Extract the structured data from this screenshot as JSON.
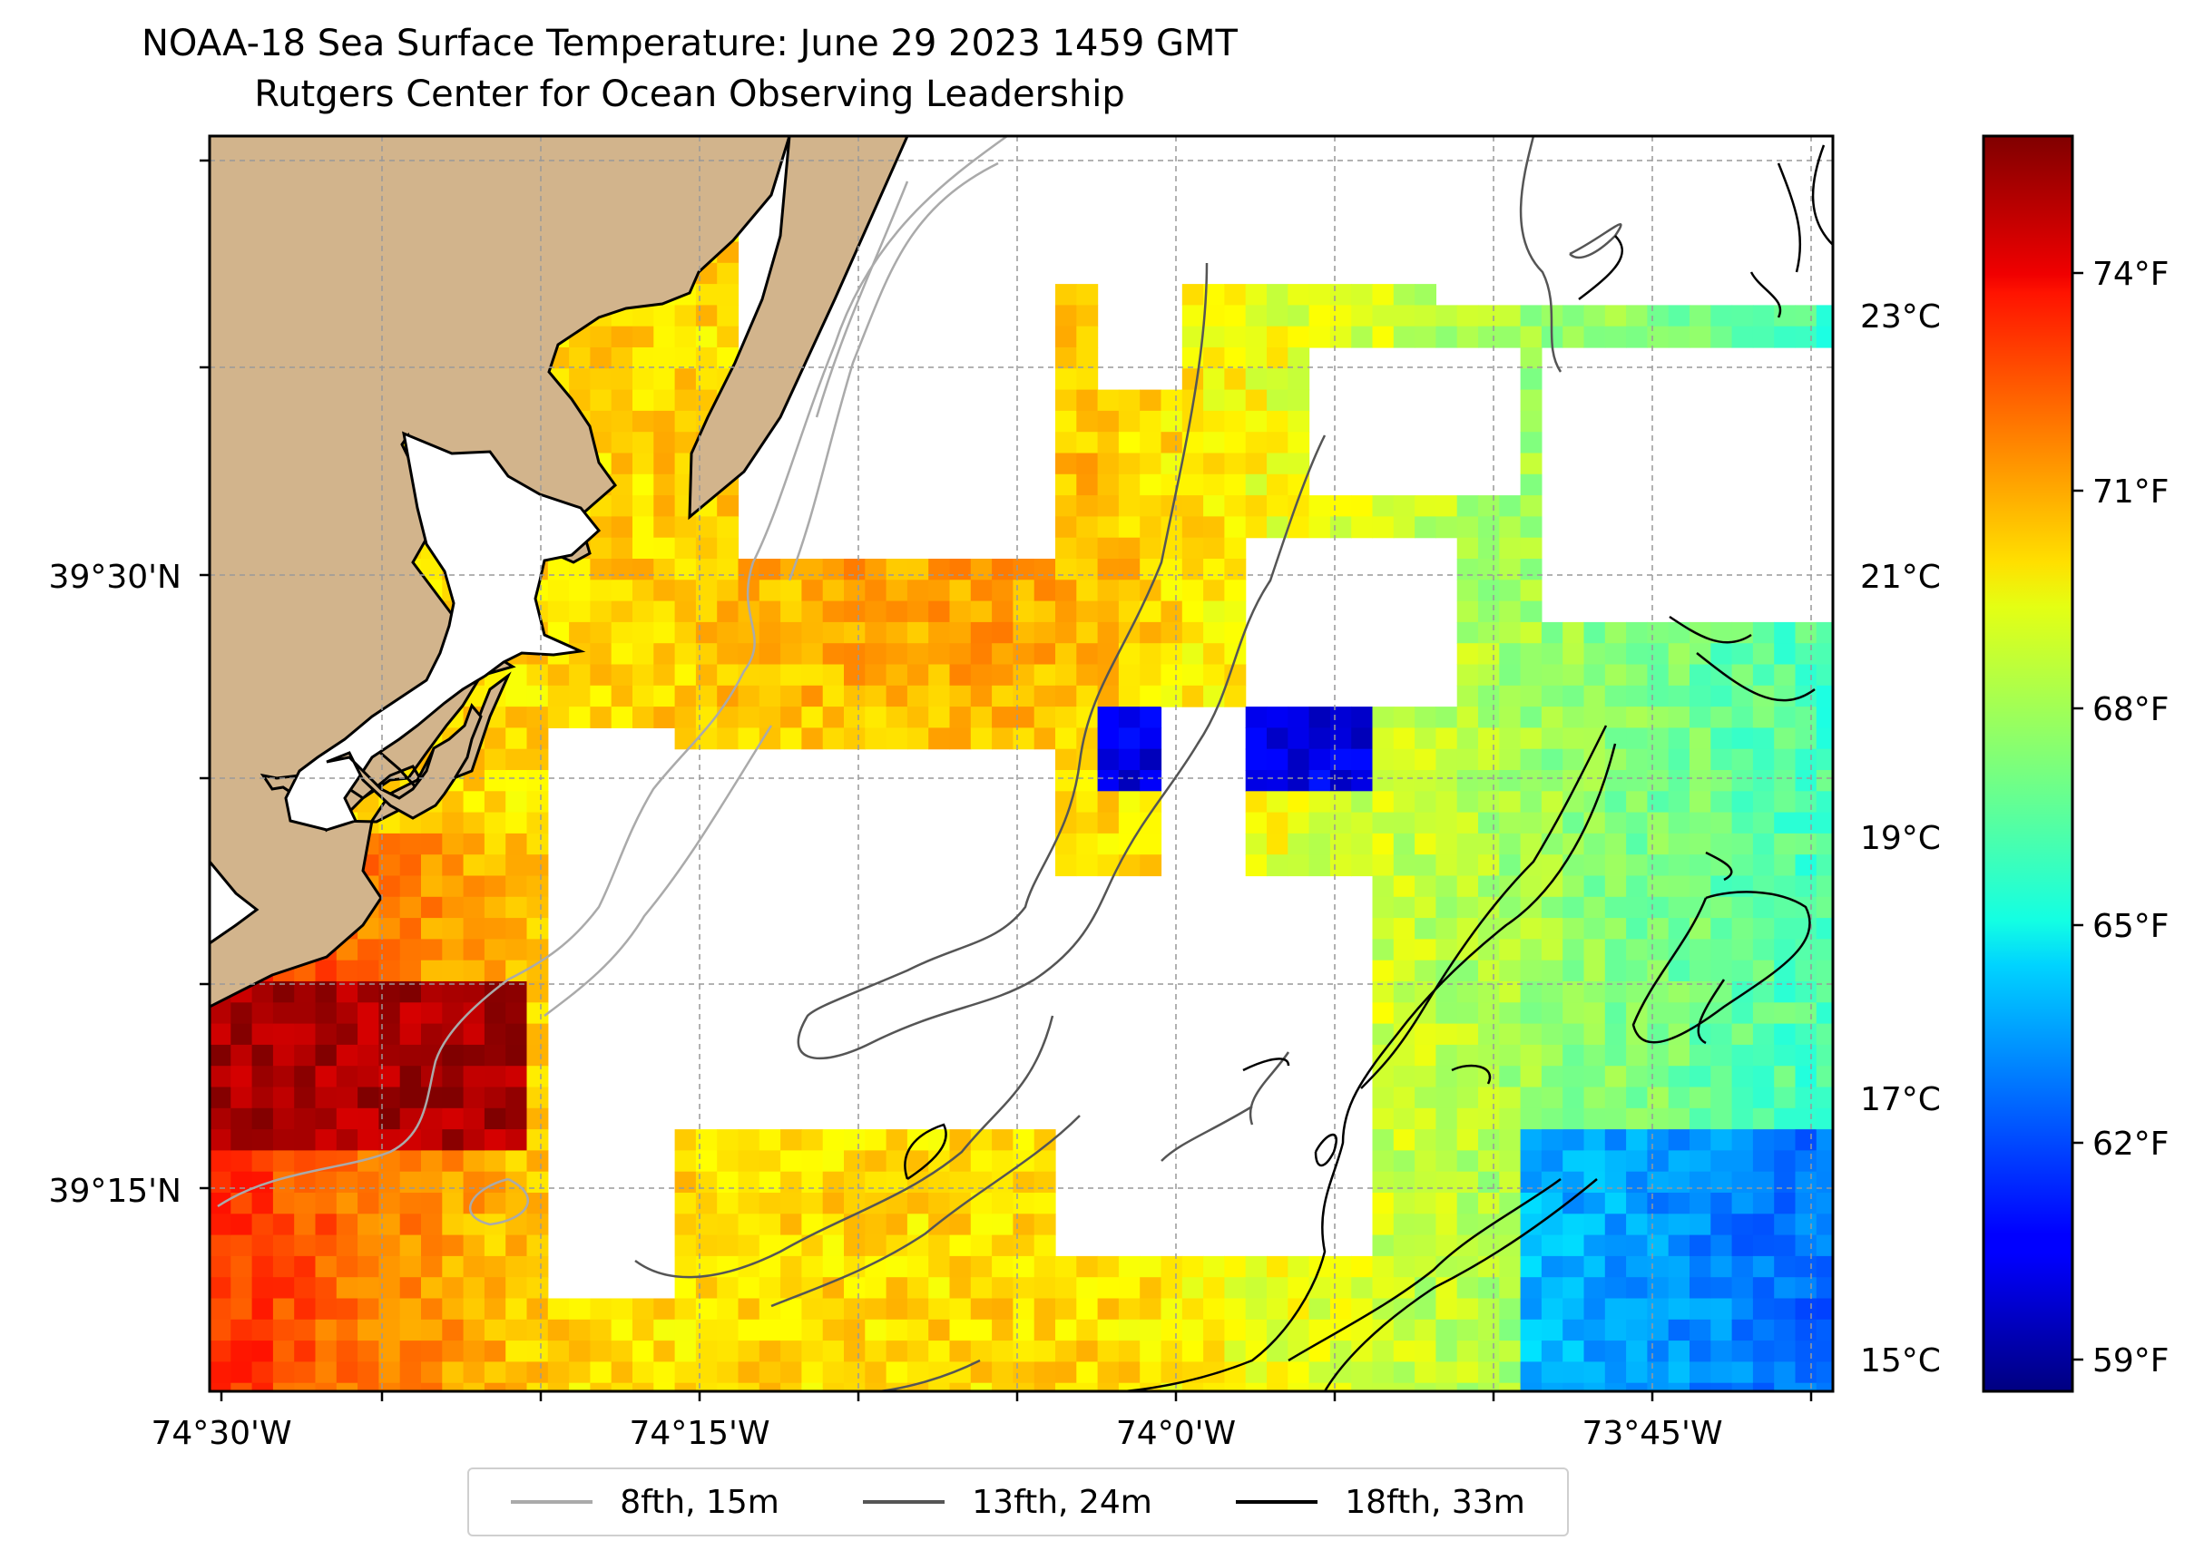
{
  "title": {
    "line1": "NOAA-18 Sea Surface Temperature: June 29 2023 1459 GMT",
    "line2": "Rutgers Center for Ocean Observing Leadership"
  },
  "map": {
    "lon_ticks": [
      "74°30'W",
      "74°15'W",
      "74°0'W",
      "73°45'W"
    ],
    "lat_ticks": [
      "39°30'N",
      "39°15'N"
    ],
    "land_color": "#d2b48c",
    "nodata_color": "#ffffff"
  },
  "colorbar": {
    "celsius_ticks": [
      "23°C",
      "21°C",
      "19°C",
      "17°C",
      "15°C"
    ],
    "fahrenheit_ticks": [
      "74°F",
      "71°F",
      "68°F",
      "65°F",
      "62°F",
      "59°F"
    ],
    "colormap": "jet"
  },
  "legend": {
    "items": [
      {
        "label": "8fth, 15m",
        "color": "#aaaaaa"
      },
      {
        "label": "13fth, 24m",
        "color": "#555555"
      },
      {
        "label": "18fth, 33m",
        "color": "#000000"
      }
    ]
  }
}
